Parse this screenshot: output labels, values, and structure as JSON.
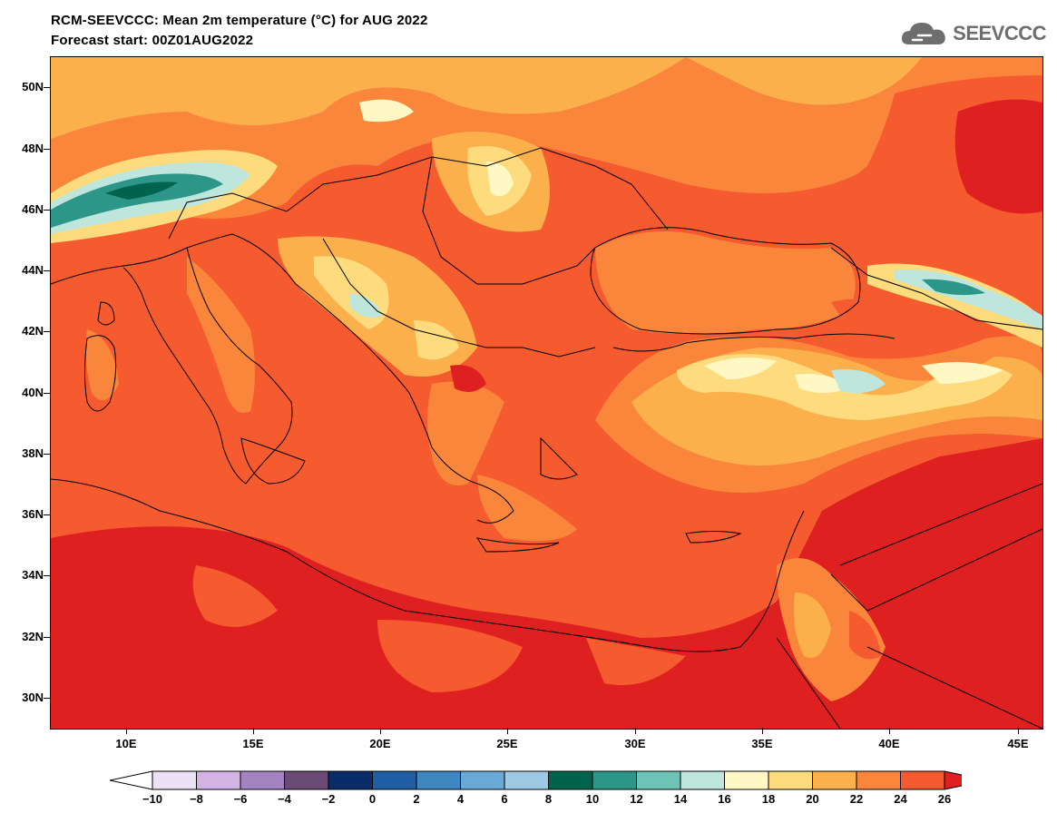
{
  "header": {
    "title_line1": "RCM-SEEVCCC: Mean 2m temperature (°C) for AUG 2022",
    "title_line2": "Forecast start: 00Z01AUG2022",
    "logo_text": "SEEVCCC",
    "logo_icon": "cloud-icon"
  },
  "map": {
    "lat_labels": [
      "50N",
      "48N",
      "46N",
      "44N",
      "42N",
      "40N",
      "38N",
      "36N",
      "34N",
      "32N",
      "30N"
    ],
    "lon_labels": [
      "10E",
      "15E",
      "20E",
      "25E",
      "30E",
      "35E",
      "40E",
      "45E"
    ],
    "base_color": "#f65a2f"
  },
  "colorbar": {
    "levels": [
      "−10",
      "−8",
      "−6",
      "−4",
      "−2",
      "0",
      "2",
      "4",
      "6",
      "8",
      "10",
      "12",
      "14",
      "16",
      "18",
      "20",
      "22",
      "24",
      "26"
    ],
    "colors": [
      "#ffffff",
      "#ece0f4",
      "#d3b3e3",
      "#a484c0",
      "#6b4a75",
      "#0a2d69",
      "#1f5ea3",
      "#3f87c1",
      "#6aa8d5",
      "#9ec9e5",
      "#00634e",
      "#2c9689",
      "#6dc3b5",
      "#bfe6dd",
      "#fff8c4",
      "#fedb7d",
      "#fbb04c",
      "#f9863b",
      "#f65a2f",
      "#de2020"
    ]
  }
}
